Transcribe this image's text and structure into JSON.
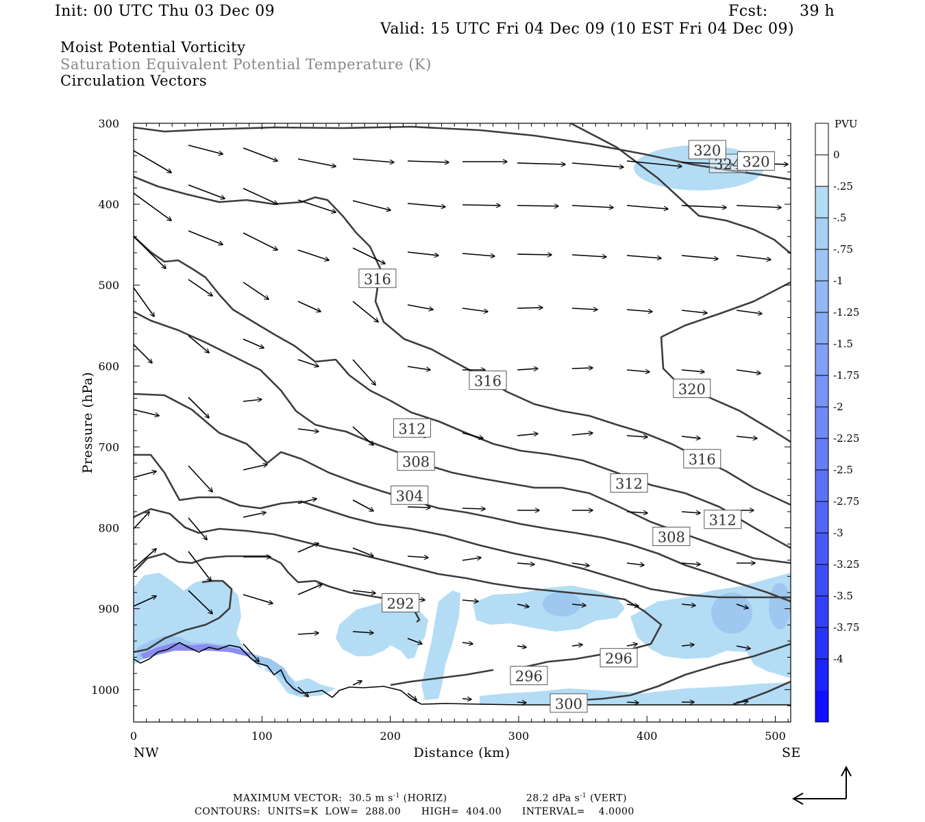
{
  "header": {
    "init": "Init: 00 UTC Thu 03 Dec 09",
    "fcst_label": "Fcst:",
    "fcst_value": "39 h",
    "valid": "Valid: 15 UTC Fri 04 Dec 09 (10 EST Fri 04 Dec 09)",
    "field1": "Moist Potential Vorticity",
    "field2": "Saturation Equivalent Potential Temperature (K)",
    "field3": "Circulation Vectors"
  },
  "colors": {
    "contour": "#3c3c3c",
    "pv_light": "#b4dcf5",
    "pv_mid": "#9ec8f0",
    "pv_dark": "#8c8cf0"
  },
  "chart_data": {
    "type": "contour cross-section",
    "xlabel": "Distance (km)",
    "ylabel": "Pressure (hPa)",
    "xlim": [
      0,
      512
    ],
    "ylim": [
      1040,
      300
    ],
    "x_ticks": [
      "0",
      "100",
      "200",
      "300",
      "400",
      "500"
    ],
    "y_ticks": [
      "300",
      "400",
      "500",
      "600",
      "700",
      "800",
      "900",
      "1000"
    ],
    "x_end_labels": {
      "left": "NW",
      "right": "SE"
    },
    "contour_labels": [
      {
        "value": "324",
        "x": 463,
        "p": 350
      },
      {
        "value": "320",
        "x": 447,
        "p": 333
      },
      {
        "value": "320",
        "x": 485,
        "p": 347
      },
      {
        "value": "316",
        "x": 190,
        "p": 492
      },
      {
        "value": "316",
        "x": 276,
        "p": 618
      },
      {
        "value": "320",
        "x": 435,
        "p": 628
      },
      {
        "value": "312",
        "x": 217,
        "p": 677
      },
      {
        "value": "316",
        "x": 443,
        "p": 715
      },
      {
        "value": "308",
        "x": 220,
        "p": 718
      },
      {
        "value": "312",
        "x": 386,
        "p": 745
      },
      {
        "value": "304",
        "x": 215,
        "p": 760
      },
      {
        "value": "312",
        "x": 459,
        "p": 790
      },
      {
        "value": "308",
        "x": 419,
        "p": 811
      },
      {
        "value": "292",
        "x": 208,
        "p": 893
      },
      {
        "value": "296",
        "x": 378,
        "p": 961
      },
      {
        "value": "296",
        "x": 308,
        "p": 983
      },
      {
        "value": "300",
        "x": 339,
        "p": 1017
      }
    ],
    "colorbar": {
      "unit": "PVU",
      "labels": [
        "0",
        "-.25",
        "-.5",
        "-.75",
        "-1",
        "-1.25",
        "-1.5",
        "-1.75",
        "-2",
        "-2.25",
        "-2.5",
        "-2.75",
        "-3",
        "-3.25",
        "-3.5",
        "-3.75",
        "-4"
      ],
      "colors": [
        "#ffffff",
        "#ffffff",
        "#b4dcf5",
        "#a8d0f5",
        "#9dc4f5",
        "#94b8f5",
        "#8aacf5",
        "#82a0f5",
        "#7a94f5",
        "#7288f5",
        "#687cf5",
        "#5e70f5",
        "#5464f5",
        "#4a58f5",
        "#3e4cf5",
        "#3440f8",
        "#2a34f8",
        "#1e24fa",
        "#1010fc"
      ]
    }
  },
  "footer": {
    "max_vector": "MAXIMUM VECTOR:  30.5 m s",
    "max_vector_horiz": " (HORIZ)",
    "max_vector_vert": "28.2 dPa s",
    "max_vector_vert_tail": " (VERT)",
    "exp": "-1",
    "contours": "CONTOURS:  UNITS=K  LOW=  288.00      HIGH=  404.00      INTERVAL=    4.0000"
  }
}
